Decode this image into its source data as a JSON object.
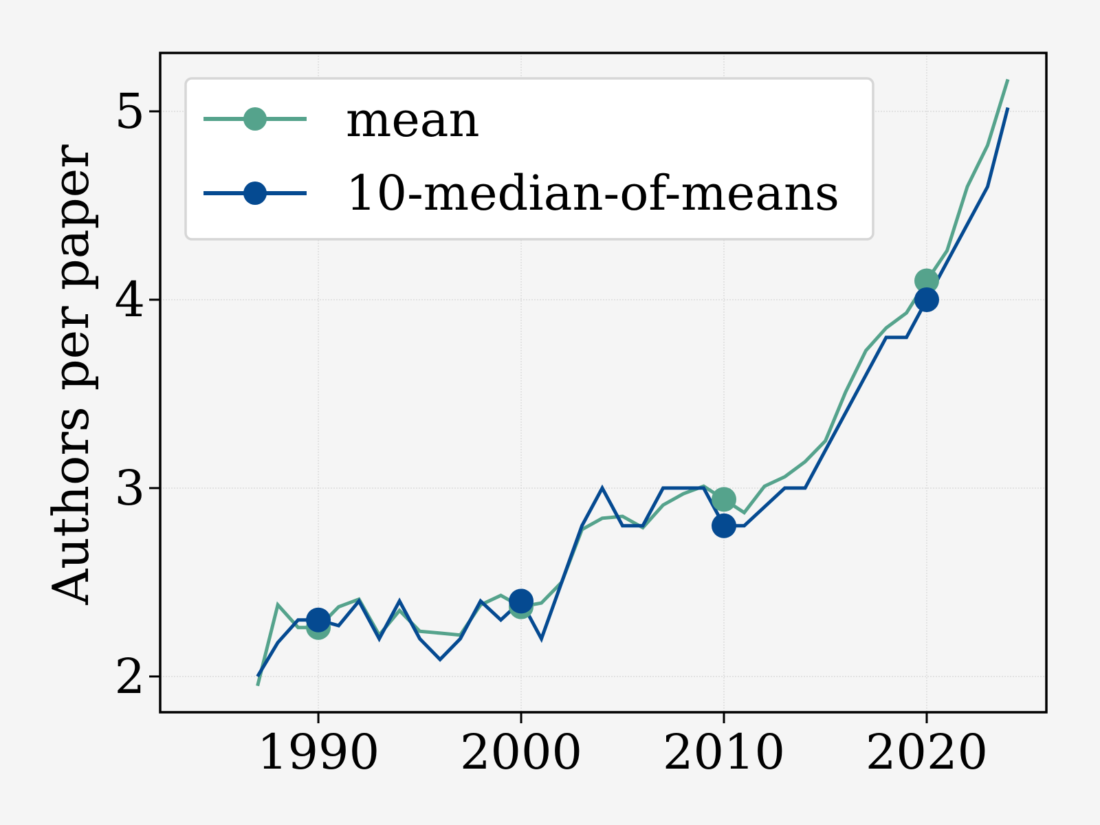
{
  "chart_data": {
    "type": "line",
    "xlabel": "",
    "ylabel": "Authors per paper",
    "xlim": [
      1982.2,
      2025.9
    ],
    "ylim": [
      1.81,
      5.31
    ],
    "xticks": [
      1990,
      2000,
      2010,
      2020
    ],
    "yticks": [
      2,
      3,
      4,
      5
    ],
    "grid": true,
    "legend_position": "top-left",
    "x": [
      1987,
      1988,
      1989,
      1990,
      1991,
      1992,
      1993,
      1994,
      1995,
      1996,
      1997,
      1998,
      1999,
      2000,
      2001,
      2002,
      2003,
      2004,
      2005,
      2006,
      2007,
      2008,
      2009,
      2010,
      2011,
      2012,
      2013,
      2014,
      2015,
      2016,
      2017,
      2018,
      2019,
      2020,
      2021,
      2022,
      2023,
      2024
    ],
    "series": [
      {
        "name": "mean",
        "color": "#55a38c",
        "values": [
          1.95,
          2.38,
          2.26,
          2.26,
          2.37,
          2.41,
          2.22,
          2.35,
          2.24,
          2.23,
          2.22,
          2.38,
          2.43,
          2.37,
          2.39,
          2.5,
          2.78,
          2.84,
          2.85,
          2.79,
          2.91,
          2.97,
          3.01,
          2.94,
          2.87,
          3.01,
          3.06,
          3.14,
          3.25,
          3.51,
          3.73,
          3.85,
          3.93,
          4.1,
          4.26,
          4.6,
          4.82,
          5.17
        ],
        "marker_x": [
          1990,
          2000,
          2010,
          2020
        ],
        "marker_values": [
          2.26,
          2.37,
          2.94,
          4.1
        ]
      },
      {
        "name": "10-median-of-means",
        "color": "#054a91",
        "values": [
          2.0,
          2.18,
          2.3,
          2.3,
          2.27,
          2.4,
          2.2,
          2.4,
          2.2,
          2.09,
          2.2,
          2.4,
          2.3,
          2.4,
          2.2,
          2.5,
          2.8,
          3.0,
          2.8,
          2.8,
          3.0,
          3.0,
          3.0,
          2.8,
          2.8,
          2.9,
          3.0,
          3.0,
          3.2,
          3.4,
          3.6,
          3.8,
          3.8,
          4.0,
          4.2,
          4.4,
          4.6,
          5.02
        ],
        "marker_x": [
          1990,
          2000,
          2010,
          2020
        ],
        "marker_values": [
          2.3,
          2.4,
          2.8,
          4.0
        ]
      }
    ]
  },
  "style": {
    "background": "#f5f5f5",
    "plot_background": "#f5f5f5",
    "grid_color": "#d0d0d0",
    "axis_color": "#000000"
  }
}
